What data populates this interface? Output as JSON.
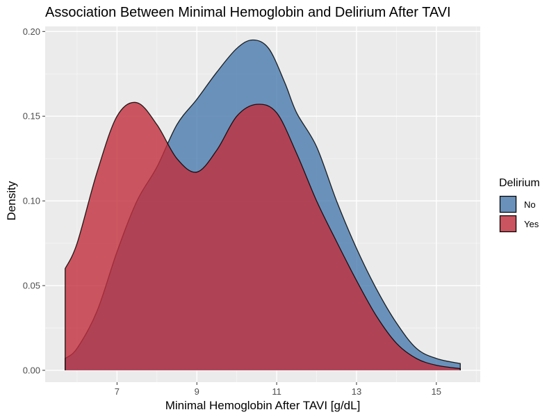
{
  "chart_data": {
    "type": "area",
    "title": "Association Between Minimal Hemoglobin and Delirium After TAVI",
    "xlabel": "Minimal Hemoglobin After TAVI [g/dL]",
    "ylabel": "Density",
    "xlim": [
      5.2,
      16.1
    ],
    "ylim": [
      -0.007,
      0.203
    ],
    "x_ticks": [
      7,
      9,
      11,
      13,
      15
    ],
    "x_tick_labels": [
      "7",
      "9",
      "11",
      "13",
      "15"
    ],
    "y_ticks": [
      0.0,
      0.05,
      0.1,
      0.15,
      0.2
    ],
    "y_tick_labels": [
      "0.00",
      "0.05",
      "0.10",
      "0.15",
      "0.20"
    ],
    "grid": true,
    "legend": {
      "title": "Delirium",
      "position": "right"
    },
    "series": [
      {
        "name": "No",
        "color": "#4A7AAE",
        "x": [
          5.7,
          6.0,
          6.5,
          7.0,
          7.5,
          8.0,
          8.5,
          9.0,
          9.5,
          10.0,
          10.4,
          10.8,
          11.2,
          11.5,
          12.0,
          12.5,
          13.0,
          13.5,
          14.0,
          14.5,
          15.0,
          15.6
        ],
        "values": [
          0.007,
          0.013,
          0.035,
          0.07,
          0.1,
          0.12,
          0.145,
          0.16,
          0.176,
          0.19,
          0.195,
          0.19,
          0.17,
          0.152,
          0.132,
          0.1,
          0.072,
          0.048,
          0.028,
          0.013,
          0.007,
          0.004
        ]
      },
      {
        "name": "Yes",
        "color": "#C22E3C",
        "x": [
          5.7,
          6.0,
          6.5,
          7.0,
          7.5,
          8.0,
          8.5,
          9.0,
          9.5,
          10.0,
          10.5,
          11.0,
          11.5,
          12.0,
          12.5,
          13.0,
          13.5,
          14.0,
          14.5,
          15.0,
          15.6
        ],
        "values": [
          0.06,
          0.075,
          0.117,
          0.15,
          0.158,
          0.145,
          0.125,
          0.117,
          0.13,
          0.15,
          0.157,
          0.152,
          0.128,
          0.1,
          0.076,
          0.053,
          0.032,
          0.016,
          0.007,
          0.003,
          0.001
        ]
      }
    ]
  }
}
